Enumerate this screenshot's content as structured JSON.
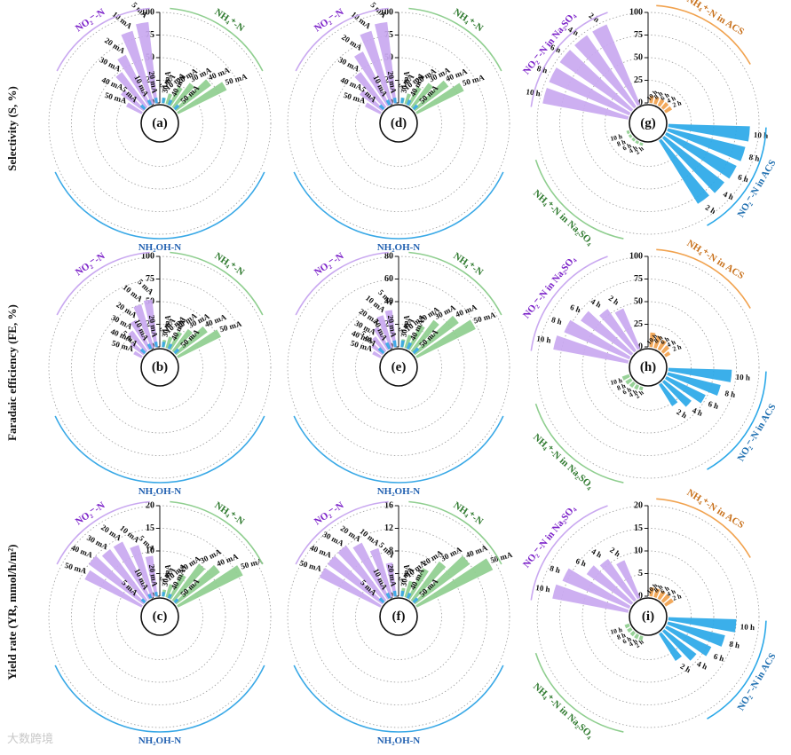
{
  "row_labels": [
    "Selectivity (S, %)",
    "Faradaic efficiency (FE, %)",
    "Yield rate (YR, mmol/h/m²)"
  ],
  "watermark": "大数跨境",
  "colors": {
    "no2": "#c9a8f0",
    "nh4": "#8fce8f",
    "nh2oh": "#38a8e6",
    "nh4_acs": "#f1a24e",
    "no2_acs": "#2aa8e8"
  },
  "chart_data": [
    {
      "panel": "(a)",
      "type": "polar_bar",
      "title": "Selectivity (S, %)",
      "axis_ticks": [
        "0",
        "25",
        "50",
        "75",
        "100"
      ],
      "rmax": 100,
      "groups": [
        {
          "name": "NO₂⁻-N",
          "categories": [
            "5 mA",
            "10 mA",
            "20 mA",
            "30 mA",
            "40 mA",
            "50 mA"
          ],
          "values": [
            90,
            84,
            62,
            48,
            31,
            19
          ]
        },
        {
          "name": "NH₄⁺-N",
          "categories": [
            "50 mA",
            "40 mA",
            "30 mA",
            "20 mA",
            "10 mA",
            "5 mA"
          ],
          "values": [
            60,
            48,
            33,
            23,
            12,
            6
          ]
        },
        {
          "name": "NH₂OH-N",
          "categories": [
            "5 mA",
            "10 mA",
            "20 mA",
            "30 mA",
            "40 mA",
            "50 mA"
          ],
          "values": [
            6,
            6,
            6,
            6,
            6,
            6
          ]
        }
      ]
    },
    {
      "panel": "(d)",
      "type": "polar_bar",
      "title": "Selectivity (S, %)",
      "axis_ticks": [
        "0",
        "25",
        "50",
        "75",
        "100"
      ],
      "rmax": 100,
      "groups": [
        {
          "name": "NO₂⁻-N",
          "categories": [
            "5 mA",
            "10 mA",
            "20 mA",
            "30 mA",
            "40 mA",
            "50 mA"
          ],
          "values": [
            90,
            84,
            66,
            48,
            31,
            19
          ]
        },
        {
          "name": "NH₄⁺-N",
          "categories": [
            "50 mA",
            "40 mA",
            "30 mA",
            "20 mA",
            "10 mA",
            "5 mA"
          ],
          "values": [
            58,
            46,
            33,
            23,
            12,
            6
          ]
        },
        {
          "name": "NH₂OH-N",
          "categories": [
            "5 mA",
            "10 mA",
            "20 mA",
            "30 mA",
            "40 mA",
            "50 mA"
          ],
          "values": [
            6,
            6,
            6,
            6,
            6,
            6
          ]
        }
      ]
    },
    {
      "panel": "(g)",
      "type": "polar_bar",
      "title": "Selectivity (S, %)",
      "axis_ticks": [
        "0",
        "25",
        "50",
        "75",
        "100"
      ],
      "rmax": 100,
      "groups": [
        {
          "name": "NO₂⁻-N in Na₂SO₄",
          "categories": [
            "2 h",
            "4 h",
            "6 h",
            "8 h",
            "10 h"
          ],
          "values": [
            96,
            96,
            96,
            96,
            96
          ]
        },
        {
          "name": "NH₄⁺-N in ACS",
          "categories": [
            "10 h",
            "8 h",
            "6 h",
            "4 h",
            "2 h"
          ],
          "values": [
            8,
            8,
            8,
            8,
            8
          ]
        },
        {
          "name": "NO₂⁻-N in ACS",
          "categories": [
            "10 h",
            "8 h",
            "6 h",
            "4 h",
            "2 h"
          ],
          "values": [
            90,
            88,
            86,
            84,
            82
          ]
        },
        {
          "name": "NH₄⁺-N in Na₂SO₄",
          "categories": [
            "2 h",
            "4 h",
            "6 h",
            "8 h",
            "10 h"
          ],
          "values": [
            3,
            3,
            3,
            3,
            3
          ]
        }
      ]
    },
    {
      "panel": "(b)",
      "type": "polar_bar",
      "title": "Faradaic efficiency (FE, %)",
      "axis_ticks": [
        "0",
        "25",
        "50",
        "75",
        "100"
      ],
      "rmax": 100,
      "groups": [
        {
          "name": "NO₂⁻-N",
          "categories": [
            "5 mA",
            "10 mA",
            "20 mA",
            "30 mA",
            "40 mA",
            "50 mA"
          ],
          "values": [
            53,
            50,
            36,
            28,
            18,
            10
          ]
        },
        {
          "name": "NH₄⁺-N",
          "categories": [
            "50 mA",
            "40 mA",
            "30 mA",
            "20 mA",
            "10 mA",
            "5 mA"
          ],
          "values": [
            53,
            43,
            30,
            22,
            13,
            8
          ]
        },
        {
          "name": "NH₂OH-N",
          "categories": [
            "5 mA",
            "10 mA",
            "20 mA",
            "30 mA",
            "40 mA",
            "50 mA"
          ],
          "values": [
            6,
            6,
            6,
            6,
            6,
            6
          ]
        }
      ]
    },
    {
      "panel": "(e)",
      "type": "polar_bar",
      "title": "Faradaic efficiency (FE, %)",
      "axis_ticks": [
        "0",
        "20",
        "40",
        "60",
        "80"
      ],
      "rmax": 80,
      "groups": [
        {
          "name": "NO₂⁻-N",
          "categories": [
            "5 mA",
            "10 mA",
            "20 mA",
            "30 mA",
            "40 mA",
            "50 mA"
          ],
          "values": [
            33,
            30,
            22,
            16,
            12,
            8
          ]
        },
        {
          "name": "NH₄⁺-N",
          "categories": [
            "50 mA",
            "40 mA",
            "30 mA",
            "20 mA",
            "10 mA",
            "5 mA"
          ],
          "values": [
            58,
            48,
            34,
            24,
            12,
            7
          ]
        },
        {
          "name": "NH₂OH-N",
          "categories": [
            "5 mA",
            "10 mA",
            "20 mA",
            "30 mA",
            "40 mA",
            "50 mA"
          ],
          "values": [
            6,
            6,
            6,
            6,
            6,
            6
          ]
        }
      ]
    },
    {
      "panel": "(h)",
      "type": "polar_bar",
      "title": "Faradaic efficiency (FE, %)",
      "axis_ticks": [
        "0",
        "25",
        "50",
        "75",
        "100"
      ],
      "rmax": 100,
      "groups": [
        {
          "name": "NO₂⁻-N in Na₂SO₄",
          "categories": [
            "2 h",
            "4 h",
            "6 h",
            "8 h",
            "10 h"
          ],
          "values": [
            48,
            56,
            68,
            78,
            84
          ]
        },
        {
          "name": "NH₄⁺-N in ACS",
          "categories": [
            "10 h",
            "8 h",
            "6 h",
            "4 h",
            "2 h"
          ],
          "values": [
            16,
            14,
            12,
            9,
            6
          ]
        },
        {
          "name": "NO₂⁻-N in ACS",
          "categories": [
            "10 h",
            "8 h",
            "6 h",
            "4 h",
            "2 h"
          ],
          "values": [
            70,
            60,
            48,
            38,
            28
          ]
        },
        {
          "name": "NH₄⁺-N in Na₂SO₄",
          "categories": [
            "2 h",
            "4 h",
            "6 h",
            "8 h",
            "10 h"
          ],
          "values": [
            4,
            5,
            6,
            7,
            8
          ]
        }
      ]
    },
    {
      "panel": "(c)",
      "type": "polar_bar",
      "title": "Yield rate (YR, mmol/h/m²)",
      "axis_ticks": [
        "0",
        "5",
        "10",
        "15",
        "20"
      ],
      "rmax": 20,
      "groups": [
        {
          "name": "NO₂⁻-N",
          "categories": [
            "5 mA",
            "10 mA",
            "20 mA",
            "30 mA",
            "40 mA",
            "50 mA"
          ],
          "values": [
            9,
            12,
            14,
            14,
            15,
            14
          ]
        },
        {
          "name": "NH₄⁺-N",
          "categories": [
            "50 mA",
            "40 mA",
            "30 mA",
            "20 mA",
            "10 mA",
            "5 mA"
          ],
          "values": [
            16,
            12,
            10,
            6,
            3,
            1.5
          ]
        },
        {
          "name": "NH₂OH-N",
          "categories": [
            "5 mA",
            "10 mA",
            "20 mA",
            "30 mA",
            "40 mA",
            "50 mA"
          ],
          "values": [
            1,
            1,
            1,
            1,
            1,
            1
          ]
        }
      ]
    },
    {
      "panel": "(f)",
      "type": "polar_bar",
      "title": "Yield rate (YR, mmol/h/m²)",
      "axis_ticks": [
        "0",
        "4",
        "8",
        "12",
        "16"
      ],
      "rmax": 16,
      "groups": [
        {
          "name": "NO₂⁻-N",
          "categories": [
            "5 mA",
            "10 mA",
            "20 mA",
            "30 mA",
            "40 mA",
            "50 mA"
          ],
          "values": [
            6,
            9,
            11,
            12,
            12,
            12
          ]
        },
        {
          "name": "NH₄⁺-N",
          "categories": [
            "50 mA",
            "40 mA",
            "30 mA",
            "20 mA",
            "10 mA",
            "5 mA"
          ],
          "values": [
            15,
            12,
            8.5,
            6,
            3,
            1.5
          ]
        },
        {
          "name": "NH₂OH-N",
          "categories": [
            "5 mA",
            "10 mA",
            "20 mA",
            "30 mA",
            "40 mA",
            "50 mA"
          ],
          "values": [
            1,
            1,
            1,
            1,
            1,
            1
          ]
        }
      ]
    },
    {
      "panel": "(i)",
      "type": "polar_bar",
      "title": "Yield rate (YR, mmol/h/m²)",
      "axis_ticks": [
        "0",
        "5",
        "10",
        "15",
        "20"
      ],
      "rmax": 20,
      "groups": [
        {
          "name": "NO₂⁻-N in Na₂SO₄",
          "categories": [
            "2 h",
            "4 h",
            "6 h",
            "8 h",
            "10 h"
          ],
          "values": [
            9,
            11,
            12,
            16,
            17
          ]
        },
        {
          "name": "NH₄⁺-N in ACS",
          "categories": [
            "10 h",
            "8 h",
            "6 h",
            "4 h",
            "2 h"
          ],
          "values": [
            2,
            2,
            2,
            2,
            2
          ]
        },
        {
          "name": "NO₂⁻-N in ACS",
          "categories": [
            "10 h",
            "8 h",
            "6 h",
            "4 h",
            "2 h"
          ],
          "values": [
            15,
            13,
            11,
            9,
            7
          ]
        },
        {
          "name": "NH₄⁺-N in Na₂SO₄",
          "categories": [
            "2 h",
            "4 h",
            "6 h",
            "8 h",
            "10 h"
          ],
          "values": [
            1,
            1,
            1,
            1,
            1
          ]
        }
      ]
    }
  ]
}
